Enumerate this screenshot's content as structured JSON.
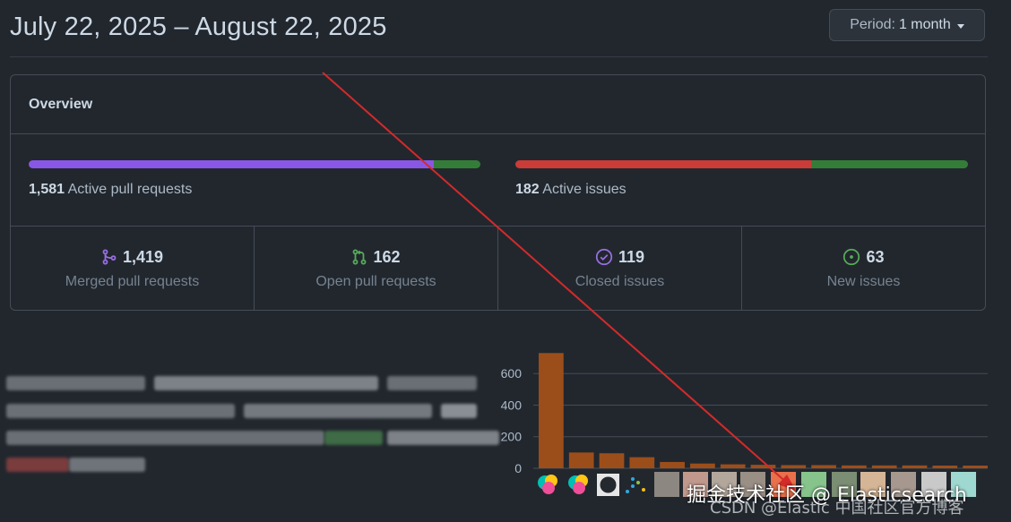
{
  "header": {
    "date_range": "July 22, 2025 – August 22, 2025",
    "period_label": "Period:",
    "period_value": "1 month"
  },
  "overview": {
    "title": "Overview",
    "pull_requests": {
      "count": "1,581",
      "label": "Active pull requests",
      "merged_fraction": 0.897,
      "colors": {
        "merged": "#8957e5",
        "open": "#347d39"
      }
    },
    "issues": {
      "count": "182",
      "label": "Active issues",
      "closed_fraction": 0.654,
      "colors": {
        "closed": "#c93c37",
        "new": "#347d39"
      }
    },
    "stats": [
      {
        "icon": "merge-icon",
        "value": "1,419",
        "label": "Merged pull requests",
        "color": "#986ee2"
      },
      {
        "icon": "pull-request-icon",
        "value": "162",
        "label": "Open pull requests",
        "color": "#57ab5a"
      },
      {
        "icon": "check-circle-icon",
        "value": "119",
        "label": "Closed issues",
        "color": "#986ee2"
      },
      {
        "icon": "issue-opened-icon",
        "value": "63",
        "label": "New issues",
        "color": "#57ab5a"
      }
    ]
  },
  "chart_data": {
    "type": "bar",
    "y_ticks": [
      "0",
      "200",
      "400",
      "600"
    ],
    "ylim": [
      0,
      760
    ],
    "values": [
      730,
      100,
      95,
      70,
      40,
      30,
      25,
      22,
      20,
      20,
      18,
      18,
      18,
      17,
      17
    ],
    "bar_color": "#9c4e1a",
    "grid": true
  },
  "watermark": {
    "line1": "掘金技术社区 @ Elasticsearch",
    "line2": "CSDN @Elastic 中国社区官方博客"
  }
}
